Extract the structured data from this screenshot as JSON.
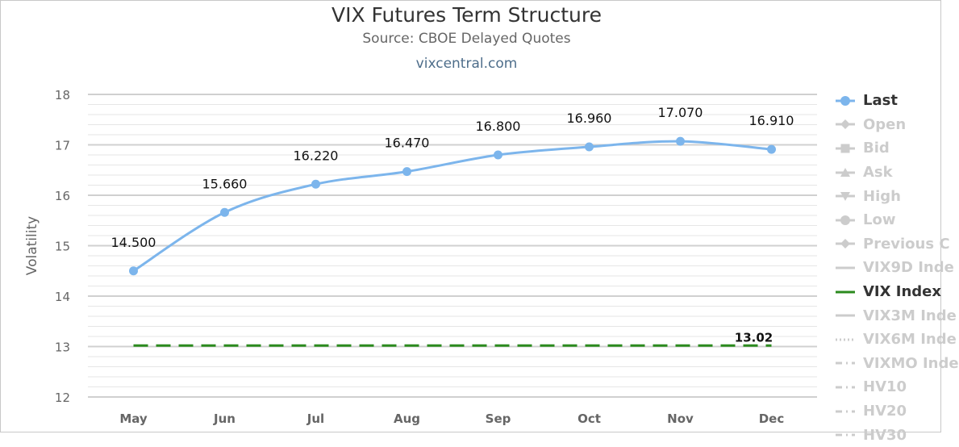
{
  "header": {
    "title": "VIX Futures Term Structure",
    "subtitle": "Source: CBOE Delayed Quotes",
    "source_link": "vixcentral.com"
  },
  "chart_data": {
    "type": "line",
    "title": "VIX Futures Term Structure",
    "subtitle": "Source: CBOE Delayed Quotes",
    "xlabel": "",
    "ylabel": "Volatility",
    "categories": [
      "May",
      "Jun",
      "Jul",
      "Aug",
      "Sep",
      "Oct",
      "Nov",
      "Dec"
    ],
    "ylim": [
      12,
      18
    ],
    "yticks": [
      12,
      13,
      14,
      15,
      16,
      17,
      18
    ],
    "grid": true,
    "legend_position": "right",
    "series": [
      {
        "name": "Last",
        "values": [
          14.5,
          15.66,
          16.22,
          16.47,
          16.8,
          16.96,
          17.07,
          16.91
        ],
        "data_labels": [
          "14.500",
          "15.660",
          "16.220",
          "16.470",
          "16.800",
          "16.960",
          "17.070",
          "16.910"
        ],
        "color": "#7cb5ec",
        "style": "smooth-line-with-markers"
      },
      {
        "name": "VIX Index",
        "values": [
          13.02,
          13.02,
          13.02,
          13.02,
          13.02,
          13.02,
          13.02,
          13.02
        ],
        "end_label": "13.02",
        "color": "#2b8a1e",
        "style": "dashed"
      }
    ]
  },
  "legend": [
    {
      "name": "Last",
      "active": true,
      "symbol": "line-circle",
      "color": "#7cb5ec"
    },
    {
      "name": "Open",
      "active": false,
      "symbol": "line-diamond"
    },
    {
      "name": "Bid",
      "active": false,
      "symbol": "line-square"
    },
    {
      "name": "Ask",
      "active": false,
      "symbol": "line-triangle"
    },
    {
      "name": "High",
      "active": false,
      "symbol": "line-triangle-down"
    },
    {
      "name": "Low",
      "active": false,
      "symbol": "line-circle"
    },
    {
      "name": "Previous C",
      "active": false,
      "symbol": "line-diamond"
    },
    {
      "name": "VIX9D Inde",
      "active": false,
      "symbol": "solid"
    },
    {
      "name": "VIX Index",
      "active": true,
      "symbol": "solid",
      "color": "#2b8a1e"
    },
    {
      "name": "VIX3M Inde",
      "active": false,
      "symbol": "solid"
    },
    {
      "name": "VIX6M Inde",
      "active": false,
      "symbol": "dotted"
    },
    {
      "name": "VIXMO Inde",
      "active": false,
      "symbol": "dash-dot"
    },
    {
      "name": "HV10",
      "active": false,
      "symbol": "dash-dot"
    },
    {
      "name": "HV20",
      "active": false,
      "symbol": "dash-dot"
    },
    {
      "name": "HV30",
      "active": false,
      "symbol": "dash-dot"
    }
  ]
}
